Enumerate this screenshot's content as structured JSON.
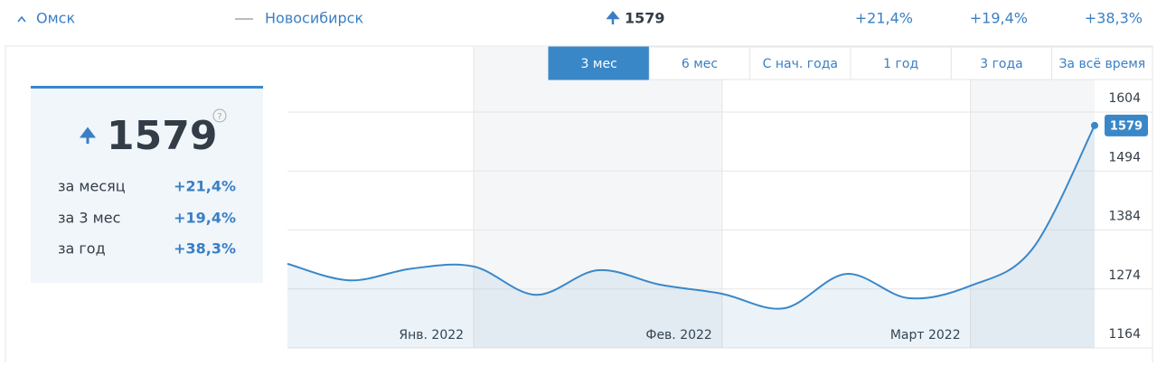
{
  "header": {
    "cities": [
      "Омск",
      "Новосибирск"
    ],
    "price": "1579",
    "changes": [
      "+21,4%",
      "+19,4%",
      "+38,3%"
    ]
  },
  "panel": {
    "price": "1579",
    "rows": [
      [
        "за месяц",
        "+21,4%"
      ],
      [
        "за 3 мес",
        "+19,4%"
      ],
      [
        "за год",
        "+38,3%"
      ]
    ]
  },
  "tabs": [
    "3 мес",
    "6 мес",
    "С нач. года",
    "1 год",
    "3 года",
    "За всё время"
  ],
  "chart_data": {
    "type": "line",
    "x": [
      0,
      1,
      2,
      3,
      4,
      5,
      6,
      7,
      8,
      9,
      10,
      11,
      12,
      13
    ],
    "xlim": [
      0,
      13
    ],
    "xticks": [
      {
        "value": 3,
        "label": "Янв. 2022"
      },
      {
        "value": 7,
        "label": "Фев. 2022"
      },
      {
        "value": 11,
        "label": "Март 2022"
      }
    ],
    "series": [
      {
        "color": "#3a87c8",
        "values": [
          1321,
          1290,
          1312,
          1316,
          1263,
          1309,
          1282,
          1265,
          1238,
          1302,
          1257,
          1280,
          1349,
          1579
        ]
      }
    ],
    "ylim": [
      1164,
      1604
    ],
    "yticks": [
      1164,
      1274,
      1384,
      1494,
      1604
    ],
    "grid": true
  }
}
